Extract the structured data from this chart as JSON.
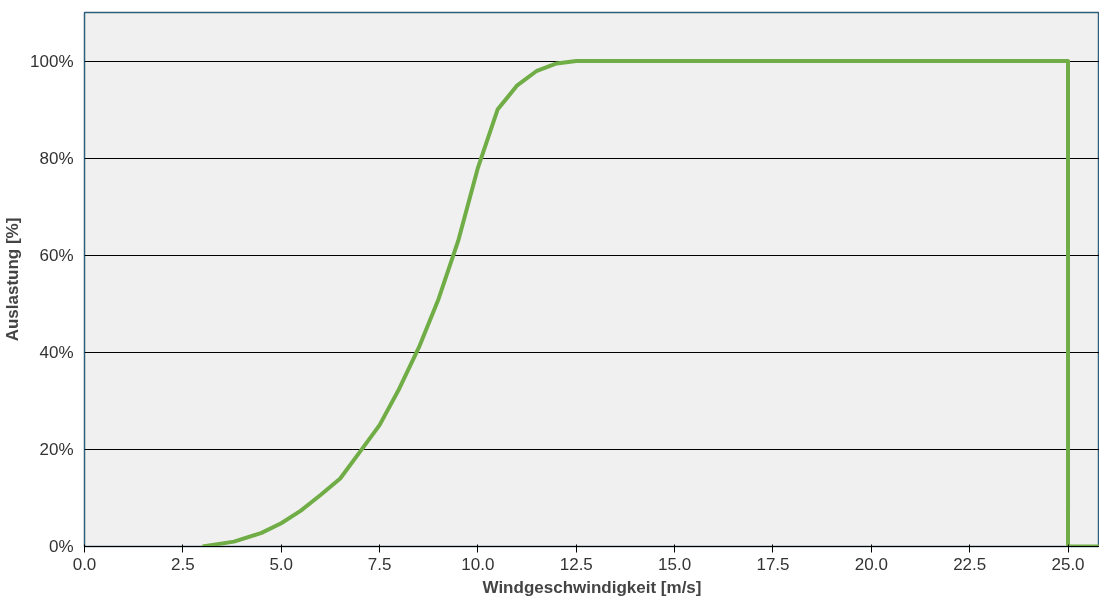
{
  "chart_data": {
    "type": "line",
    "xlabel": "Windgeschwindigkeit [m/s]",
    "ylabel": "Auslastung [%]",
    "x": [
      3.0,
      3.8,
      4.5,
      5.0,
      5.5,
      6.0,
      6.5,
      7.0,
      7.5,
      8.0,
      8.5,
      9.0,
      9.5,
      10.0,
      10.5,
      11.0,
      11.5,
      12.0,
      12.5,
      25.0,
      25.0,
      25.8
    ],
    "series": [
      {
        "color": "#70ad47",
        "values": [
          0,
          1,
          2.8,
          4.8,
          7.4,
          10.6,
          14,
          19.5,
          25,
          32.5,
          41,
          51,
          63,
          78,
          90,
          95,
          98,
          99.5,
          100,
          100,
          0,
          0
        ]
      }
    ],
    "xlim": [
      0,
      25.8
    ],
    "ylim": [
      0,
      110
    ],
    "xticks": [
      {
        "value": 0,
        "label": "0.0"
      },
      {
        "value": 2.5,
        "label": "2.5"
      },
      {
        "value": 5,
        "label": "5.0"
      },
      {
        "value": 7.5,
        "label": "7.5"
      },
      {
        "value": 10,
        "label": "10.0"
      },
      {
        "value": 12.5,
        "label": "12.5"
      },
      {
        "value": 15,
        "label": "15.0"
      },
      {
        "value": 17.5,
        "label": "17.5"
      },
      {
        "value": 20,
        "label": "20.0"
      },
      {
        "value": 22.5,
        "label": "22.5"
      },
      {
        "value": 25,
        "label": "25.0"
      }
    ],
    "yticks": [
      {
        "value": 0,
        "label": "0%"
      },
      {
        "value": 20,
        "label": "20%"
      },
      {
        "value": 40,
        "label": "40%"
      },
      {
        "value": 60,
        "label": "60%"
      },
      {
        "value": 80,
        "label": "80%"
      },
      {
        "value": 100,
        "label": "100%"
      }
    ],
    "grid": "y",
    "marker": "none",
    "line_style": "solid"
  }
}
